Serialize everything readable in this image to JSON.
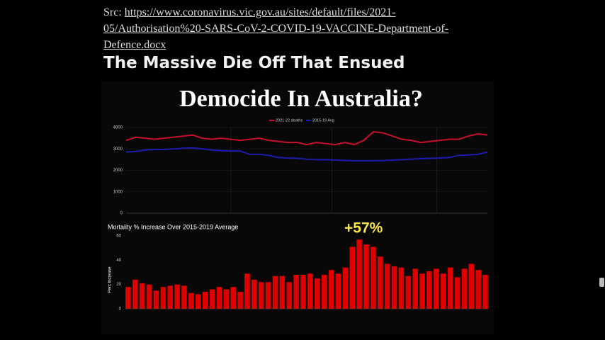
{
  "source": {
    "prefix": "Src:",
    "url": "https://www.coronavirus.vic.gov.au/sites/default/files/2021-05/Authorisation%20-SARS-CoV-2-COVID-19-VACCINE-Department-of-Defence.docx"
  },
  "heading": "The Massive Die Off That Ensued",
  "chart_data": [
    {
      "type": "line",
      "title": "Democide In Australia?",
      "categories": [
        null,
        null,
        null,
        null,
        null,
        null,
        null,
        null,
        null,
        null,
        null,
        null,
        null,
        null,
        null,
        null,
        null,
        null,
        null,
        null,
        null,
        null,
        null,
        null,
        null,
        null,
        null,
        null,
        null,
        null,
        null,
        null,
        null,
        null,
        null,
        null,
        null,
        null,
        null
      ],
      "series": [
        {
          "name": "2021-22 deaths",
          "color": "#c8102e",
          "values": [
            3400,
            3550,
            3500,
            3450,
            3500,
            3550,
            3600,
            3650,
            3500,
            3450,
            3500,
            3450,
            3400,
            3450,
            3500,
            3400,
            3350,
            3300,
            3300,
            3200,
            3300,
            3250,
            3200,
            3300,
            3200,
            3400,
            3800,
            3750,
            3600,
            3450,
            3400,
            3300,
            3350,
            3400,
            3450,
            3450,
            3600,
            3700,
            3650
          ]
        },
        {
          "name": "2015-19 Avg",
          "color": "#1c1cb0",
          "values": [
            2850,
            2880,
            2950,
            2970,
            2980,
            3000,
            3030,
            3050,
            3000,
            2950,
            2920,
            2900,
            2900,
            2750,
            2750,
            2700,
            2600,
            2580,
            2560,
            2520,
            2500,
            2500,
            2480,
            2460,
            2450,
            2450,
            2450,
            2460,
            2480,
            2500,
            2520,
            2550,
            2560,
            2580,
            2600,
            2700,
            2720,
            2750,
            2850
          ]
        }
      ],
      "ylim": [
        0,
        4000
      ],
      "yticks": [
        0,
        1000,
        2000,
        3000,
        4000
      ],
      "grid": true,
      "legend": "top"
    },
    {
      "type": "bar",
      "title": "Mortality % Increase Over 2015-2019 Average",
      "y_label": "Perc Increase",
      "annotation": "+57%",
      "categories": [
        null,
        null,
        null,
        null,
        null,
        null,
        null,
        null,
        null,
        null,
        null,
        null,
        null,
        null,
        null,
        null,
        null,
        null,
        null,
        null,
        null,
        null,
        null,
        null,
        null,
        null,
        null,
        null,
        null,
        null,
        null,
        null,
        null,
        null,
        null,
        null,
        null,
        null,
        null,
        null,
        null,
        null,
        null,
        null,
        null,
        null,
        null,
        null,
        null,
        null,
        null,
        null
      ],
      "values": [
        18,
        24,
        21,
        20,
        15,
        18,
        19,
        20,
        19,
        13,
        12,
        14,
        16,
        18,
        16,
        18,
        14,
        29,
        24,
        22,
        22,
        27,
        27,
        22,
        28,
        28,
        29,
        25,
        28,
        32,
        29,
        34,
        51,
        57,
        53,
        51,
        43,
        37,
        35,
        34,
        27,
        33,
        29,
        31,
        33,
        29,
        34,
        26,
        33,
        37,
        32,
        28
      ],
      "color": "#e00000",
      "ylim": [
        0,
        60
      ],
      "yticks": [
        0,
        20,
        40,
        60
      ],
      "grid": false
    }
  ]
}
